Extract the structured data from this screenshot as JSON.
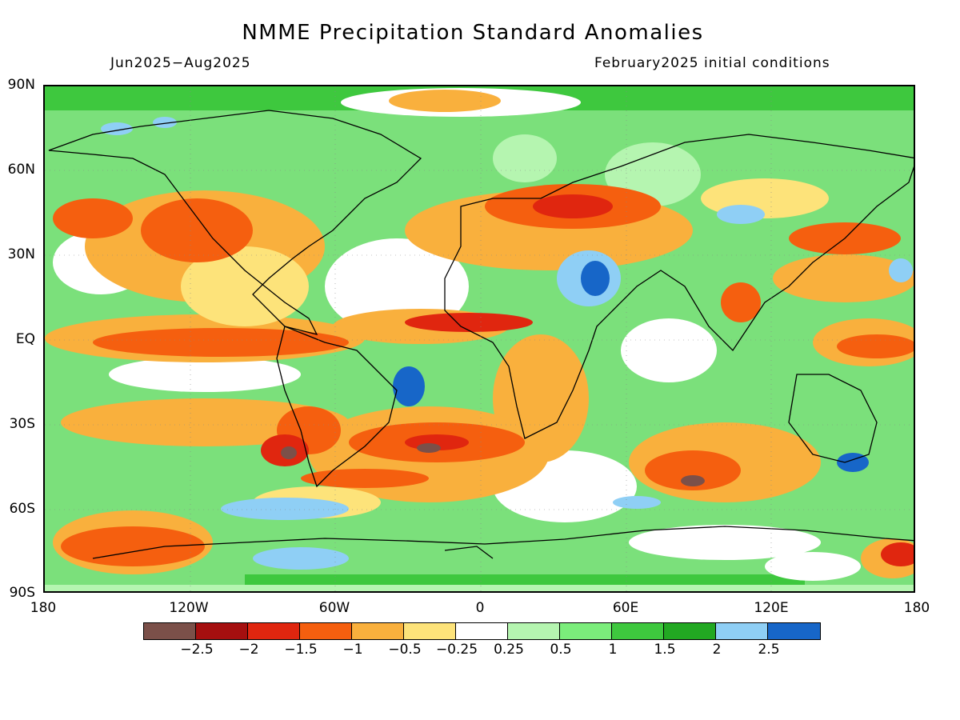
{
  "title": "NMME Precipitation Standard Anomalies",
  "period": "Jun2025−Aug2025",
  "initial_conditions": "February2025 initial conditions",
  "lat_labels": [
    "90N",
    "60N",
    "30N",
    "EQ",
    "30S",
    "60S",
    "90S"
  ],
  "lon_labels": [
    "180",
    "120W",
    "60W",
    "0",
    "60E",
    "120E",
    "180"
  ],
  "colorbar": {
    "colors": [
      "#7b5049",
      "#a50f0f",
      "#e0260f",
      "#f55f0f",
      "#f9b03d",
      "#fde37a",
      "#ffffff",
      "#b5f5b0",
      "#7bed7b",
      "#3ec83e",
      "#22a822",
      "#8fcff5",
      "#1766c8"
    ],
    "labels": [
      "−2.5",
      "−2",
      "−1.5",
      "−1",
      "−0.5",
      "−0.25",
      "0.25",
      "0.5",
      "1",
      "1.5",
      "2",
      "2.5"
    ]
  }
}
